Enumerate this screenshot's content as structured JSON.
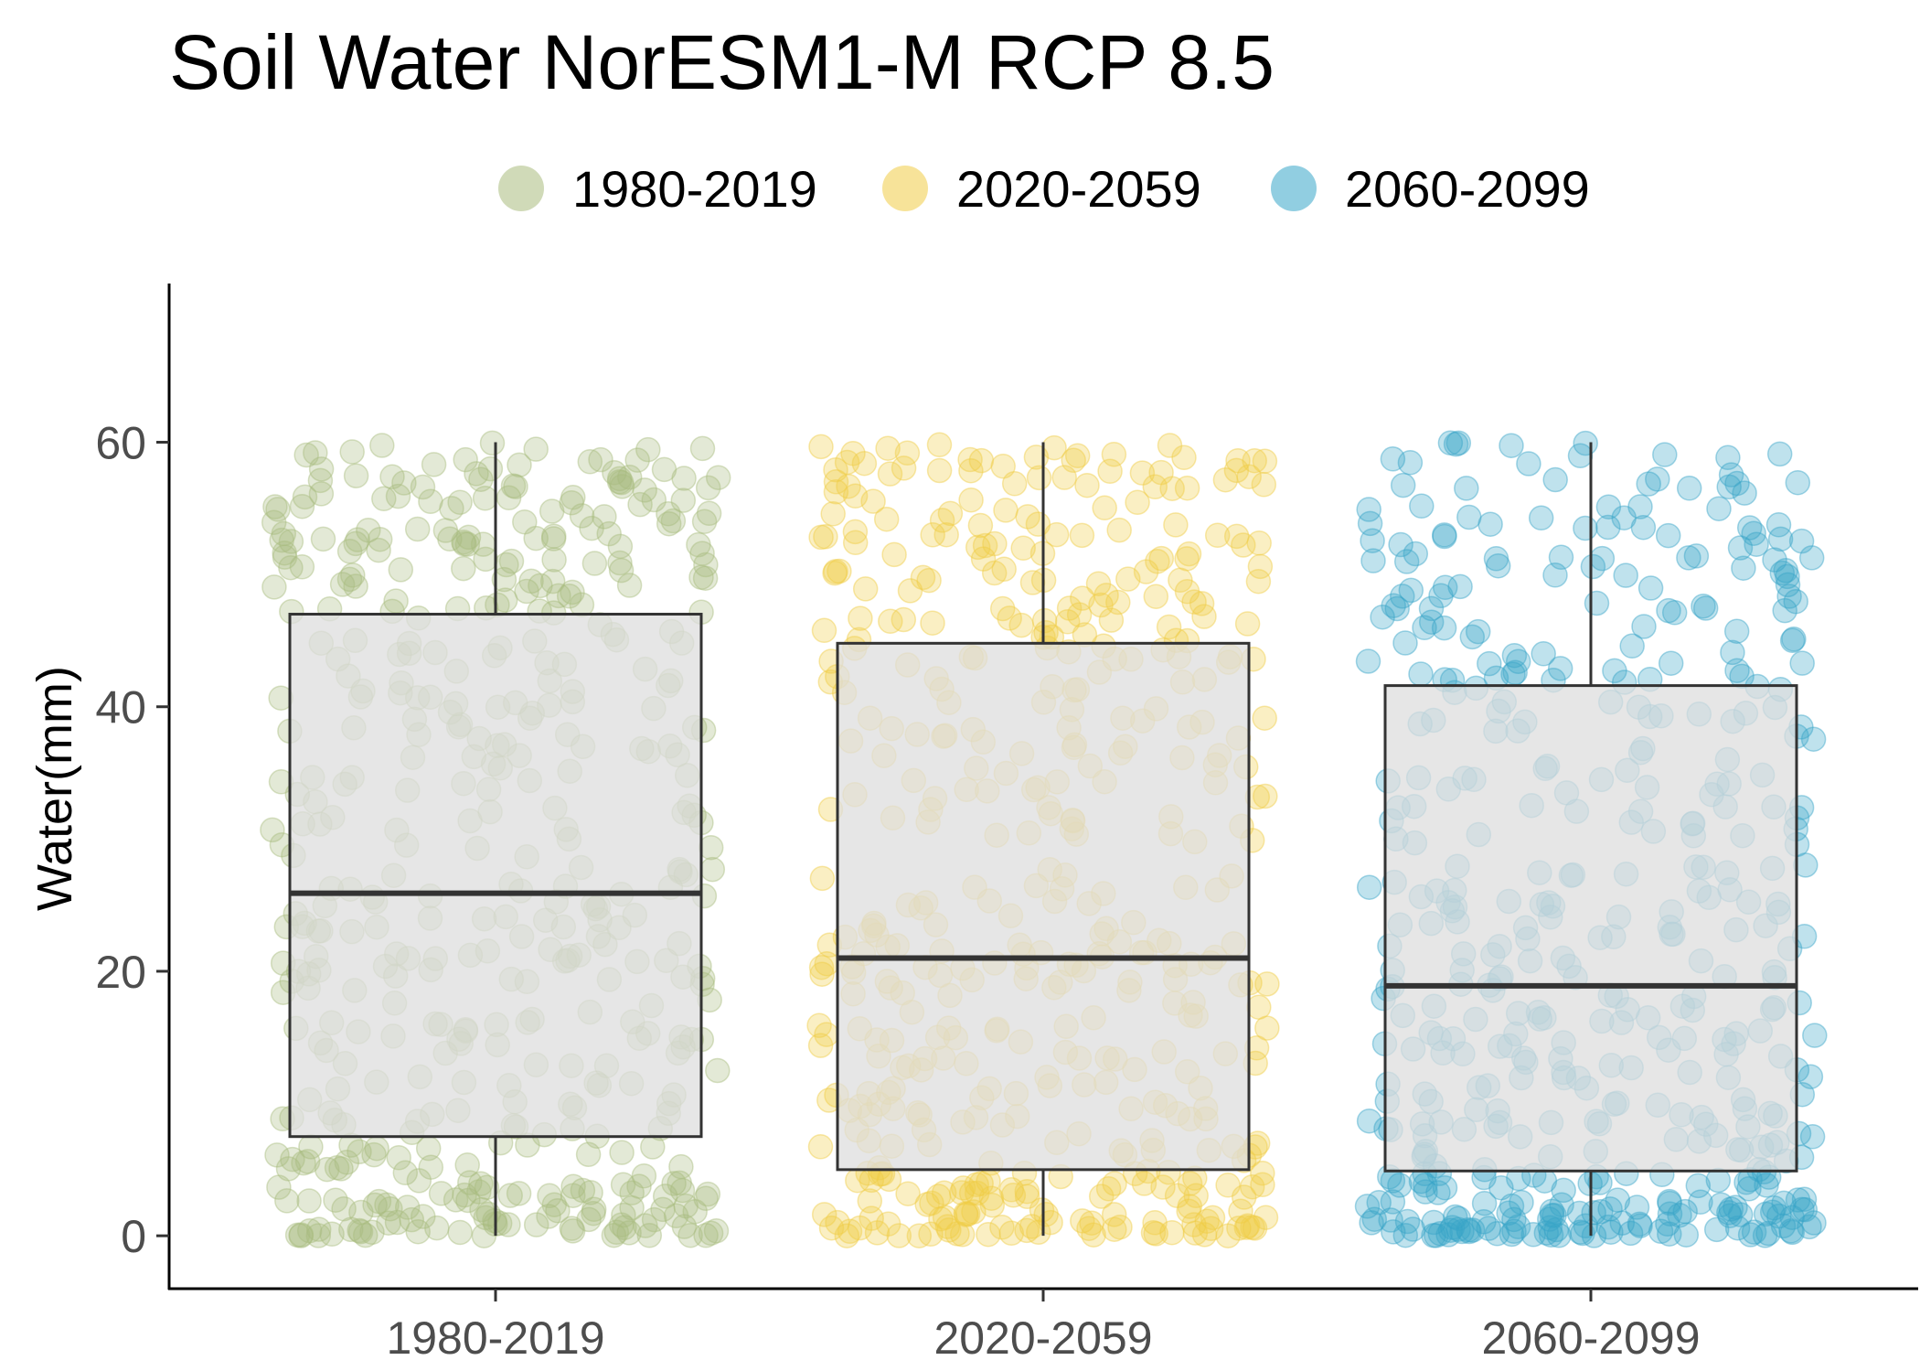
{
  "chart_data": {
    "type": "box-jitter",
    "title": "Soil Water NorESM1-M RCP 8.5",
    "ylabel": "Water(mm)",
    "xlabel": "",
    "ylim": [
      -4,
      72
    ],
    "yticks": [
      0,
      20,
      40,
      60
    ],
    "grid": false,
    "legend_position": "top",
    "categories": [
      "1980-2019",
      "2020-2059",
      "2060-2099"
    ],
    "legend": [
      "1980-2019",
      "2020-2059",
      "2060-2099"
    ],
    "colors": [
      "#a9bc7e",
      "#f0cc45",
      "#37a5c8"
    ],
    "box_fill": "#dedede",
    "box_stroke": "#333333",
    "boxes": [
      {
        "name": "1980-2019",
        "q1": 7.5,
        "median": 25.9,
        "q3": 47.0,
        "whisker_low": 0.0,
        "whisker_high": 60.0
      },
      {
        "name": "2020-2059",
        "q1": 5.0,
        "median": 21.0,
        "q3": 44.8,
        "whisker_low": 0.0,
        "whisker_high": 60.0
      },
      {
        "name": "2060-2099",
        "q1": 4.9,
        "median": 18.9,
        "q3": 41.6,
        "whisker_low": 0.0,
        "whisker_high": 60.0
      }
    ],
    "points_per_group": 480,
    "point_range": [
      0,
      60
    ]
  }
}
